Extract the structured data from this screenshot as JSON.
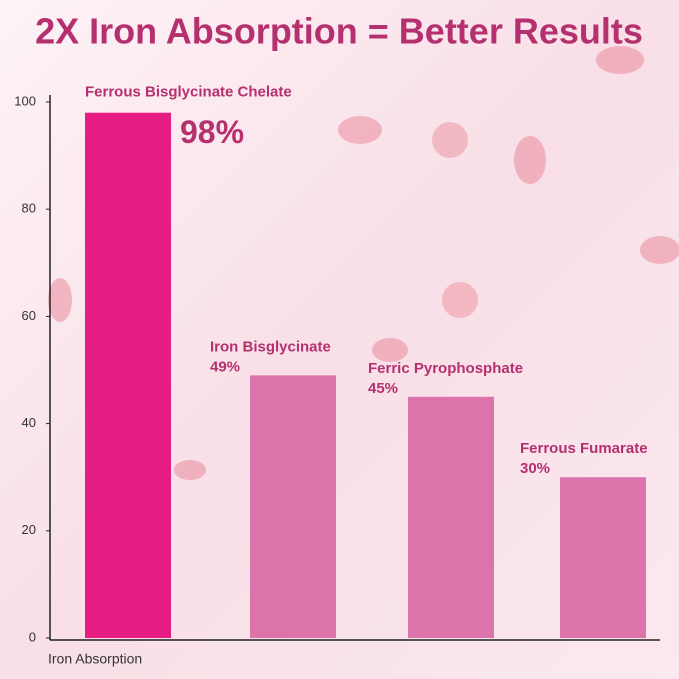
{
  "chart_data": {
    "type": "bar",
    "title": "2X Iron Absorption = Better Results",
    "x_label": "Iron Absorption",
    "categories": [
      "Ferrous Bisglycinate Chelate",
      "Iron Bisglycinate",
      "Ferric Pyrophosphate",
      "Ferrous Fumarate"
    ],
    "values": [
      98,
      49,
      45,
      30
    ],
    "value_labels": [
      "98%",
      "49%",
      "45%",
      "30%"
    ],
    "colors": [
      "#e61e84",
      "#dc73aa",
      "#dc73aa",
      "#dc73aa"
    ],
    "ylim": [
      0,
      100
    ],
    "yticks": [
      0,
      20,
      40,
      60,
      80,
      100
    ],
    "grid": false
  }
}
